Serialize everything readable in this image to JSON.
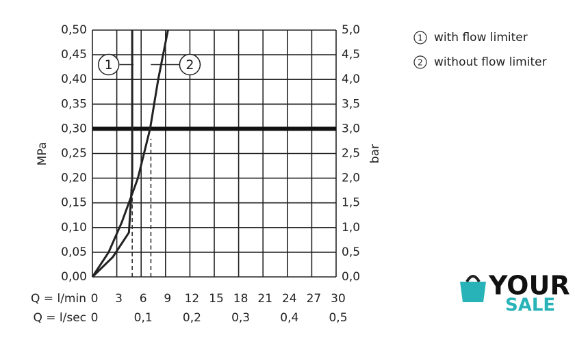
{
  "chart_data": {
    "type": "line",
    "xlabel": "Q = l/min",
    "x2label": "Q = l/sec",
    "ylabel": "MPa",
    "y2label": "bar",
    "xlim": [
      0,
      30
    ],
    "xticks": [
      0,
      3,
      6,
      9,
      12,
      15,
      18,
      21,
      24,
      27,
      30
    ],
    "x2ticks": [
      0,
      {
        "value": 0.1,
        "label": "0,1"
      },
      {
        "value": 0.2,
        "label": "0,2"
      },
      {
        "value": 0.3,
        "label": "0,3"
      },
      {
        "value": 0.4,
        "label": "0,4"
      },
      {
        "value": 0.5,
        "label": "0,5"
      }
    ],
    "ylim": [
      0,
      0.5
    ],
    "yticks": [
      {
        "value": 0,
        "label": "0,00"
      },
      {
        "value": 0.05,
        "label": "0,05"
      },
      {
        "value": 0.1,
        "label": "0,10"
      },
      {
        "value": 0.15,
        "label": "0,15"
      },
      {
        "value": 0.2,
        "label": "0,20"
      },
      {
        "value": 0.25,
        "label": "0,25"
      },
      {
        "value": 0.3,
        "label": "0,30"
      },
      {
        "value": 0.35,
        "label": "0,35"
      },
      {
        "value": 0.4,
        "label": "0,40"
      },
      {
        "value": 0.45,
        "label": "0,45"
      },
      {
        "value": 0.5,
        "label": "0,50"
      }
    ],
    "y2lim": [
      0,
      5
    ],
    "y2ticks": [
      {
        "value": 0,
        "label": "0,0"
      },
      {
        "value": 0.5,
        "label": "0,5"
      },
      {
        "value": 1,
        "label": "1,0"
      },
      {
        "value": 1.5,
        "label": "1,5"
      },
      {
        "value": 2,
        "label": "2,0"
      },
      {
        "value": 2.5,
        "label": "2,5"
      },
      {
        "value": 3,
        "label": "3,0"
      },
      {
        "value": 3.5,
        "label": "3,5"
      },
      {
        "value": 4,
        "label": "4,0"
      },
      {
        "value": 4.5,
        "label": "4,5"
      },
      {
        "value": 5,
        "label": "5,0"
      }
    ],
    "grid": true,
    "threshold": 0.3,
    "series": [
      {
        "name": "with flow limiter",
        "label": "1",
        "color": "#222",
        "x": [
          0,
          2.5,
          4.5,
          4.9,
          4.9
        ],
        "values": [
          0,
          0.04,
          0.09,
          0.2,
          0.5
        ],
        "label_at": [
          2,
          0.43
        ]
      },
      {
        "name": "without flow limiter",
        "label": "2",
        "color": "#222",
        "x": [
          0,
          2,
          3.6,
          5.6,
          7.1,
          8.1,
          9.3
        ],
        "values": [
          0,
          0.05,
          0.11,
          0.2,
          0.3,
          0.4,
          0.5
        ],
        "label_at": [
          12,
          0.43
        ]
      }
    ],
    "markers": [
      {
        "x": 4.9,
        "y": 0.18
      },
      {
        "x": 7.2,
        "y": 0.28
      }
    ]
  },
  "watermark": {
    "line1": "YOUR",
    "line2": "SALE"
  }
}
